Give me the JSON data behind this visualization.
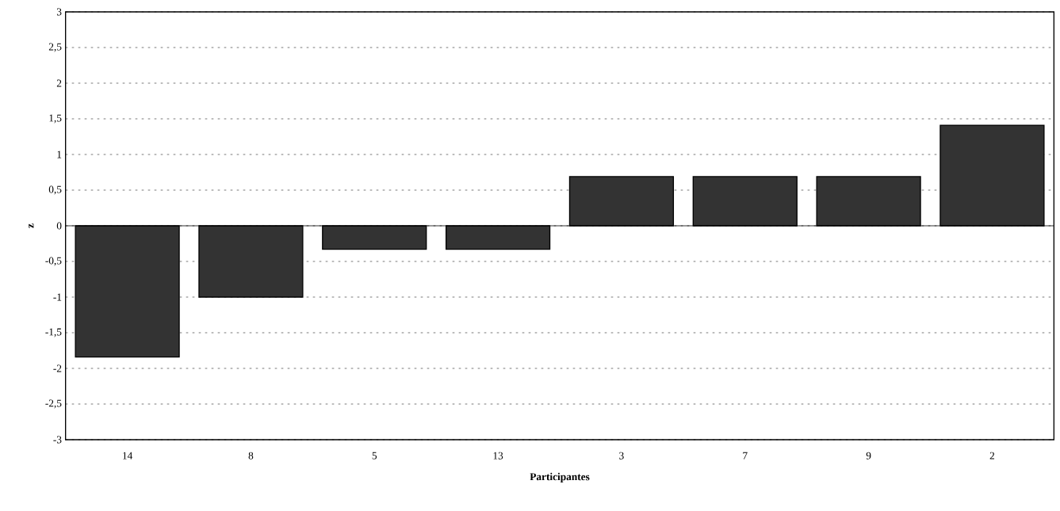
{
  "chart_data": {
    "type": "bar",
    "xlabel": "Participantes",
    "ylabel": "z",
    "categories": [
      "14",
      "8",
      "5",
      "13",
      "3",
      "7",
      "9",
      "2"
    ],
    "values": [
      -1.84,
      -1.0,
      -0.33,
      -0.33,
      0.69,
      0.69,
      0.69,
      1.41
    ],
    "color": "#333333",
    "ylim": [
      -3,
      3
    ],
    "yticks": [
      -3,
      {
        "value": -2.5,
        "label": "-2,5"
      },
      -2,
      {
        "value": -1.5,
        "label": "-1,5"
      },
      -1,
      {
        "value": -0.5,
        "label": "-0,5"
      },
      0,
      {
        "value": 0.5,
        "label": "0,5"
      },
      1,
      {
        "value": 1.5,
        "label": "1,5"
      },
      2,
      {
        "value": 2.5,
        "label": "2,5"
      },
      3
    ],
    "grid": "y"
  }
}
